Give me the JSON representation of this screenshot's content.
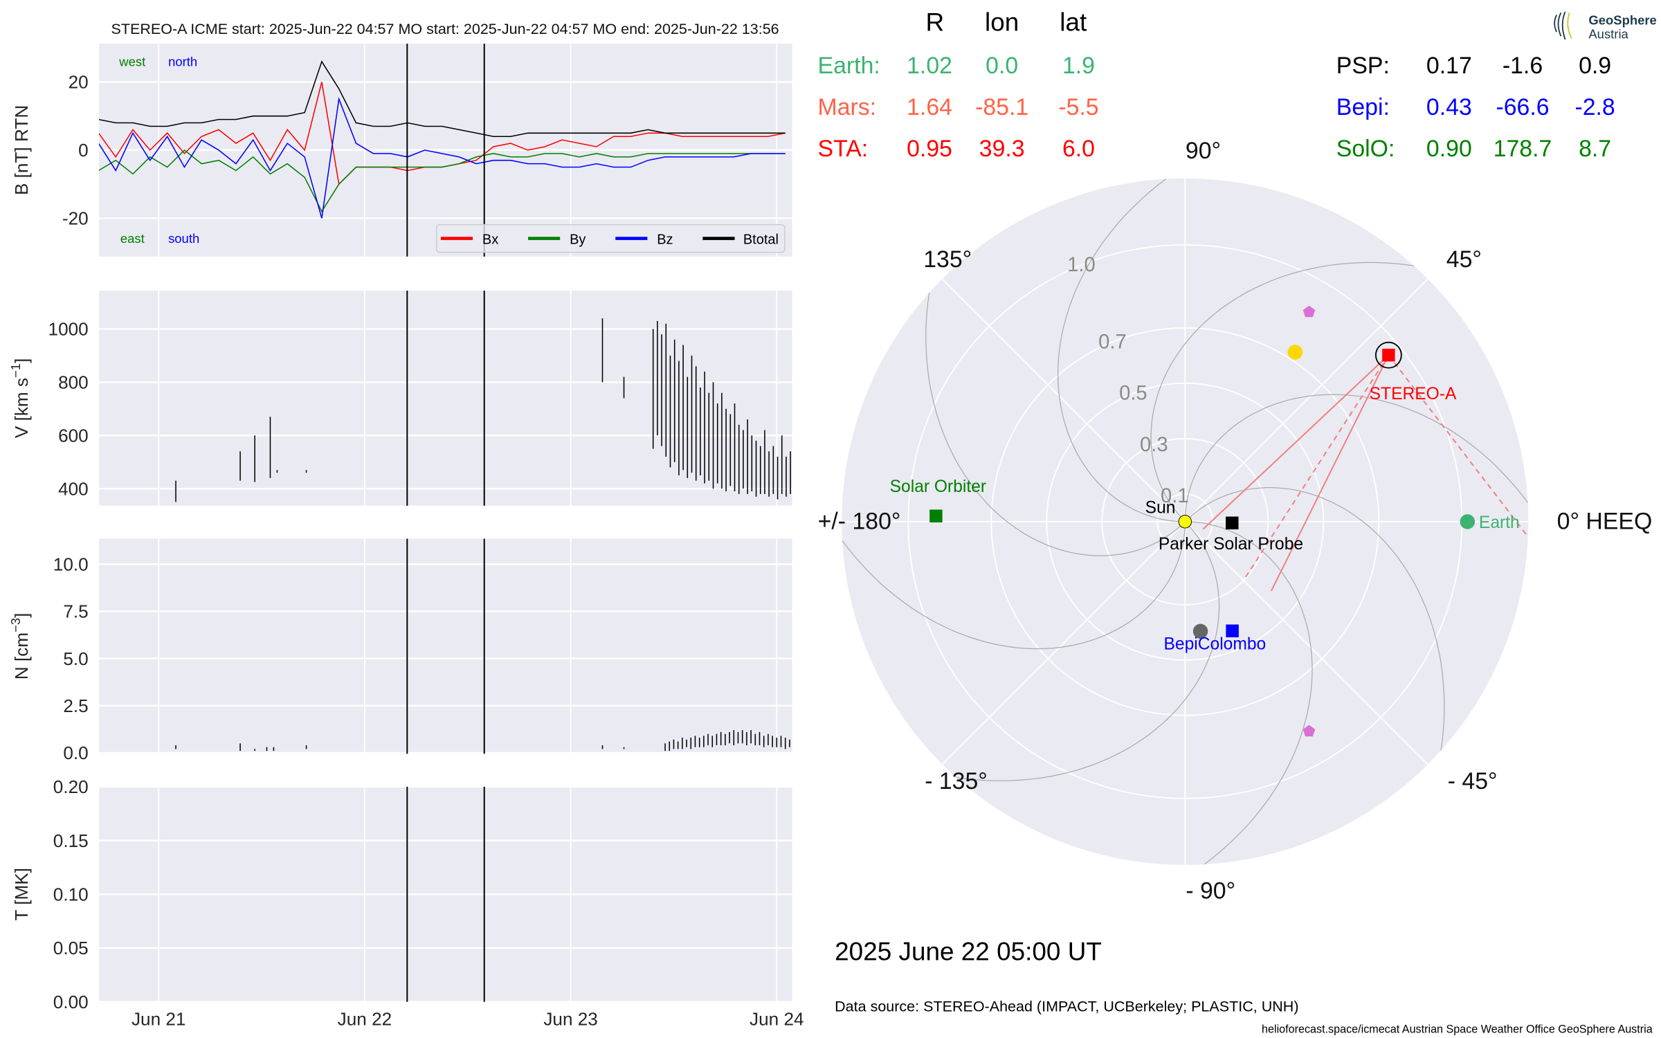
{
  "colors": {
    "axes_bg": "#eaeaf2",
    "grid": "#ffffff",
    "bx": "#ff0000",
    "by": "#008000",
    "bz": "#0000ff",
    "btot": "#000000",
    "earth": "#3cb371",
    "mars": "#ff6347",
    "sta": "#ff0000",
    "psp": "#000000",
    "bepi": "#0000ff",
    "solo": "#008000",
    "venus": "#ffd700",
    "mercury": "#666666",
    "sun": "#ffff00",
    "pentagon": "#da70d6",
    "fov": "#f08080"
  },
  "header": {
    "title": "STEREO-A    ICME start: 2025-Jun-22 04:57    MO start: 2025-Jun-22 04:57    MO end: 2025-Jun-22 13:56",
    "b_annotations": {
      "west": "west",
      "north": "north",
      "east": "east",
      "south": "south"
    }
  },
  "legend": [
    "Bx",
    "By",
    "Bz",
    "Btotal"
  ],
  "x_ticks": [
    {
      "label": "Jun 21",
      "h": 0
    },
    {
      "label": "Jun 22",
      "h": 24
    },
    {
      "label": "Jun 23",
      "h": 48
    },
    {
      "label": "Jun 24",
      "h": 72
    }
  ],
  "markers": {
    "icme_start_h": 28.95,
    "mo_end_h": 37.93
  },
  "chart_data": [
    {
      "type": "line",
      "title": "B field",
      "ylabel": "B [nT] RTN",
      "ylim": [
        -31.25,
        31.25
      ],
      "yticks": [
        "20",
        "0",
        "-20"
      ],
      "ytick_values": [
        20,
        0,
        -20
      ],
      "xlim_h": [
        -7.0,
        74.1
      ],
      "x_h": [
        -7,
        -5,
        -3,
        -1,
        1,
        3,
        5,
        7,
        9,
        11,
        13,
        15,
        17,
        19,
        21,
        23,
        25,
        27,
        29,
        31,
        33,
        35,
        37,
        39,
        41,
        43,
        45,
        47,
        49,
        51,
        53,
        55,
        57,
        59,
        61,
        63,
        65,
        67,
        69,
        71,
        73
      ],
      "series": [
        {
          "name": "Bx",
          "values": [
            5,
            -2,
            6,
            0,
            5,
            -1,
            4,
            6,
            2,
            5,
            -3,
            6,
            0,
            20,
            -10,
            -5,
            -5,
            -5,
            -6,
            -5,
            -5,
            -4,
            -3,
            1,
            2,
            0,
            1,
            3,
            2,
            1,
            4,
            4,
            5,
            5,
            4,
            4,
            4,
            4,
            4,
            4,
            5
          ]
        },
        {
          "name": "By",
          "values": [
            -6,
            -3,
            -7,
            -2,
            -5,
            0,
            -4,
            -3,
            -6,
            -2,
            -7,
            -4,
            -8,
            -18,
            -10,
            -5,
            -5,
            -5,
            -5,
            -5,
            -5,
            -4,
            -2,
            -1,
            -2,
            -2,
            -1,
            -1,
            -2,
            -1,
            -2,
            -2,
            -1,
            -1,
            -1,
            -1,
            -1,
            -1,
            -1,
            -1,
            -1
          ]
        },
        {
          "name": "Bz",
          "values": [
            2,
            -6,
            5,
            -3,
            4,
            -5,
            3,
            0,
            -4,
            3,
            -6,
            2,
            -2,
            -20,
            15,
            2,
            -1,
            -1,
            -2,
            0,
            -1,
            -2,
            -4,
            -3,
            -3,
            -4,
            -4,
            -5,
            -5,
            -4,
            -5,
            -5,
            -3,
            -2,
            -2,
            -2,
            -2,
            -2,
            -1,
            -1,
            -1
          ]
        },
        {
          "name": "Btotal",
          "values": [
            9,
            8,
            8,
            7,
            7,
            8,
            8,
            9,
            9,
            10,
            10,
            10,
            11,
            26,
            18,
            8,
            7,
            7,
            8,
            7,
            7,
            6,
            5,
            4,
            4,
            5,
            5,
            5,
            5,
            5,
            5,
            5,
            6,
            5,
            5,
            5,
            5,
            5,
            5,
            5,
            5
          ]
        }
      ]
    },
    {
      "type": "line",
      "title": "Speed",
      "ylabel": "V [km s$^{-1}$]",
      "ylabel_main": "V [km s",
      "ylabel_sup": "−1",
      "ylabel_end": "]",
      "ylim": [
        336,
        1144
      ],
      "yticks": [
        "1000",
        "800",
        "600",
        "400"
      ],
      "ytick_values": [
        1000,
        800,
        600,
        400
      ],
      "segments_h_min_max": [
        [
          2,
          350,
          430
        ],
        [
          9.5,
          430,
          540
        ],
        [
          11.2,
          425,
          600
        ],
        [
          13,
          440,
          670
        ],
        [
          13.8,
          460,
          470
        ],
        [
          17.2,
          460,
          470
        ],
        [
          51.7,
          800,
          1040
        ],
        [
          54.2,
          740,
          820
        ],
        [
          57.6,
          550,
          1000
        ],
        [
          58.1,
          600,
          1030
        ],
        [
          58.6,
          560,
          980
        ],
        [
          59.1,
          520,
          1020
        ],
        [
          59.6,
          480,
          900
        ],
        [
          60.1,
          500,
          960
        ],
        [
          60.6,
          450,
          880
        ],
        [
          61.1,
          470,
          940
        ],
        [
          61.6,
          440,
          820
        ],
        [
          62.1,
          460,
          900
        ],
        [
          62.6,
          430,
          860
        ],
        [
          63.1,
          450,
          780
        ],
        [
          63.6,
          420,
          840
        ],
        [
          64.1,
          430,
          760
        ],
        [
          64.6,
          400,
          800
        ],
        [
          65.1,
          420,
          720
        ],
        [
          65.6,
          400,
          760
        ],
        [
          66.1,
          390,
          700
        ],
        [
          66.6,
          410,
          680
        ],
        [
          67.1,
          390,
          720
        ],
        [
          67.6,
          380,
          640
        ],
        [
          68.1,
          400,
          620
        ],
        [
          68.6,
          380,
          660
        ],
        [
          69.1,
          390,
          600
        ],
        [
          69.6,
          370,
          580
        ],
        [
          70.1,
          380,
          560
        ],
        [
          70.6,
          380,
          620
        ],
        [
          71.1,
          370,
          540
        ],
        [
          71.6,
          380,
          560
        ],
        [
          72.1,
          360,
          520
        ],
        [
          72.6,
          380,
          600
        ],
        [
          73.1,
          370,
          520
        ],
        [
          73.6,
          380,
          540
        ]
      ]
    },
    {
      "type": "line",
      "title": "Density",
      "ylabel_main": "N [cm",
      "ylabel_sup": "−3",
      "ylabel_end": "]",
      "ylim": [
        -0.05,
        11.35
      ],
      "yticks": [
        "10.0",
        "7.5",
        "5.0",
        "2.5",
        "0.0"
      ],
      "ytick_values": [
        10,
        7.5,
        5,
        2.5,
        0
      ],
      "segments_h_min_max": [
        [
          2,
          0.2,
          0.4
        ],
        [
          9.5,
          0.1,
          0.5
        ],
        [
          11.2,
          0.1,
          0.2
        ],
        [
          12.6,
          0.1,
          0.3
        ],
        [
          13.4,
          0.1,
          0.3
        ],
        [
          17.2,
          0.2,
          0.4
        ],
        [
          51.7,
          0.2,
          0.4
        ],
        [
          54.2,
          0.2,
          0.3
        ],
        [
          59,
          0.1,
          0.5
        ],
        [
          59.5,
          0.1,
          0.6
        ],
        [
          60,
          0.2,
          0.7
        ],
        [
          60.5,
          0.2,
          0.6
        ],
        [
          61,
          0.2,
          0.8
        ],
        [
          61.5,
          0.3,
          0.7
        ],
        [
          62,
          0.2,
          0.8
        ],
        [
          62.5,
          0.3,
          0.9
        ],
        [
          63,
          0.3,
          0.8
        ],
        [
          63.5,
          0.3,
          0.9
        ],
        [
          64,
          0.4,
          1.0
        ],
        [
          64.5,
          0.3,
          0.9
        ],
        [
          65,
          0.4,
          1.0
        ],
        [
          65.5,
          0.4,
          1.1
        ],
        [
          66,
          0.4,
          1.0
        ],
        [
          66.5,
          0.5,
          1.1
        ],
        [
          67,
          0.4,
          1.2
        ],
        [
          67.5,
          0.5,
          1.1
        ],
        [
          68,
          0.5,
          1.2
        ],
        [
          68.5,
          0.4,
          1.1
        ],
        [
          69,
          0.5,
          1.2
        ],
        [
          69.5,
          0.4,
          1.0
        ],
        [
          70,
          0.4,
          1.1
        ],
        [
          70.5,
          0.3,
          0.9
        ],
        [
          71,
          0.4,
          1.0
        ],
        [
          71.5,
          0.3,
          0.9
        ],
        [
          72,
          0.3,
          0.8
        ],
        [
          72.5,
          0.3,
          0.9
        ],
        [
          73,
          0.2,
          0.8
        ],
        [
          73.5,
          0.3,
          0.7
        ],
        [
          74,
          0.2,
          0.7
        ]
      ]
    },
    {
      "type": "line",
      "title": "Temperature",
      "ylabel": "T [MK]",
      "ylim": [
        0,
        0.2
      ],
      "yticks": [
        "0.20",
        "0.15",
        "0.10",
        "0.05",
        "0.00"
      ],
      "ytick_values": [
        0.2,
        0.15,
        0.1,
        0.05,
        0
      ],
      "values": []
    },
    {
      "type": "scatter",
      "title": "HEEQ positions (polar)",
      "rlim": [
        0,
        1.24
      ],
      "ring_labels": [
        {
          "label": "0.1",
          "r": 0.1
        },
        {
          "label": "0.3",
          "r": 0.3
        },
        {
          "label": "0.5",
          "r": 0.5
        },
        {
          "label": "0.7",
          "r": 0.7
        },
        {
          "label": "1.0",
          "r": 1.0
        }
      ],
      "angle_labels": {
        "a90": "90°",
        "a45": "45°",
        "a135": "135°",
        "a180": "+/- 180°",
        "a0": "0° HEEQ",
        "am45": "- 45°",
        "am135": "- 135°",
        "am90": "- 90°"
      },
      "bodies": [
        {
          "name": "Sun",
          "label": "Sun",
          "r": 0.0,
          "lon": 0,
          "shape": "circle",
          "color": "#ffff00"
        },
        {
          "name": "Earth",
          "label": "Earth",
          "r": 1.02,
          "lon": 0.0,
          "shape": "circle",
          "color": "#3cb371"
        },
        {
          "name": "Venus",
          "label": "",
          "r": 0.73,
          "lon": 57,
          "shape": "circle",
          "color": "#ffd700"
        },
        {
          "name": "Mercury",
          "label": "",
          "r": 0.4,
          "lon": -82,
          "shape": "circle",
          "color": "#666666"
        },
        {
          "name": "STEREO-A",
          "label": "STEREO-A",
          "r": 0.95,
          "lon": 39.3,
          "shape": "square",
          "color": "#ff0000"
        },
        {
          "name": "Parker Solar Probe",
          "label": "Parker Solar Probe",
          "r": 0.17,
          "lon": -1.6,
          "shape": "square",
          "color": "#000000"
        },
        {
          "name": "BepiColombo",
          "label": "BepiColombo",
          "r": 0.43,
          "lon": -66.6,
          "shape": "square",
          "color": "#0000ff"
        },
        {
          "name": "Solar Orbiter",
          "label": "Solar Orbiter",
          "r": 0.9,
          "lon": 178.7,
          "shape": "square",
          "color": "#008000"
        },
        {
          "name": "object-north",
          "label": "",
          "r": 0.88,
          "lon": 59.4,
          "shape": "pentagon",
          "color": "#da70d6"
        },
        {
          "name": "object-south",
          "label": "",
          "r": 0.88,
          "lon": -59.4,
          "shape": "pentagon",
          "color": "#da70d6"
        }
      ]
    }
  ],
  "positions_table": {
    "headers": [
      "R",
      "lon",
      "lat"
    ],
    "left": [
      {
        "name": "Earth:",
        "R": "1.02",
        "lon": "0.0",
        "lat": "1.9",
        "color": "#3cb371"
      },
      {
        "name": "Mars:",
        "R": "1.64",
        "lon": "-85.1",
        "lat": "-5.5",
        "color": "#ff6347"
      },
      {
        "name": "STA:",
        "R": "0.95",
        "lon": "39.3",
        "lat": "6.0",
        "color": "#ff0000"
      }
    ],
    "right": [
      {
        "name": "PSP:",
        "R": "0.17",
        "lon": "-1.6",
        "lat": "0.9",
        "color": "#000000"
      },
      {
        "name": "Bepi:",
        "R": "0.43",
        "lon": "-66.6",
        "lat": "-2.8",
        "color": "#0000ff"
      },
      {
        "name": "SolO:",
        "R": "0.90",
        "lon": "178.7",
        "lat": "8.7",
        "color": "#008000"
      }
    ]
  },
  "logo": {
    "line1": "GeoSphere",
    "line2": "Austria"
  },
  "date_label": "2025 June 22  05:00 UT",
  "data_source": "Data source: STEREO-Ahead (IMPACT, UCBerkeley; PLASTIC, UNH)",
  "footer": "helioforecast.space/icmecat   Austrian Space Weather Office   GeoSphere Austria"
}
